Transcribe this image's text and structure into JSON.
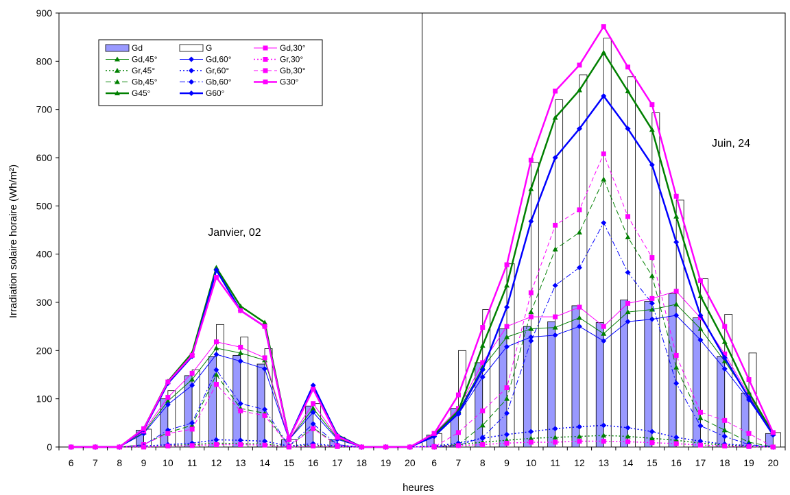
{
  "chart_data": {
    "type": "bar",
    "xlabel": "heures",
    "ylabel": "Irradiation solaire horaire (Wh/m²)",
    "ylim": [
      0,
      900
    ],
    "yticks": [
      0,
      100,
      200,
      300,
      400,
      500,
      600,
      700,
      800,
      900
    ],
    "grid": false,
    "legend_position": "top-left",
    "annotations": [
      "Janvier, 02",
      "Juin, 24"
    ],
    "categories": [
      "6",
      "7",
      "8",
      "9",
      "10",
      "11",
      "12",
      "13",
      "14",
      "15",
      "16",
      "17",
      "18",
      "19",
      "20",
      "6",
      "7",
      "8",
      "9",
      "10",
      "11",
      "12",
      "13",
      "14",
      "15",
      "16",
      "17",
      "18",
      "19",
      "20"
    ],
    "bar_series": [
      {
        "name": "Gd",
        "color": "#9999ff",
        "values": [
          0,
          0,
          0,
          35,
          100,
          148,
          188,
          190,
          172,
          15,
          85,
          15,
          0,
          0,
          0,
          25,
          80,
          175,
          245,
          250,
          260,
          293,
          258,
          305,
          302,
          318,
          268,
          188,
          112,
          28
        ]
      },
      {
        "name": "G",
        "color": "#ffffff",
        "values": [
          0,
          0,
          0,
          37,
          117,
          160,
          254,
          228,
          204,
          15,
          90,
          20,
          0,
          0,
          0,
          28,
          200,
          285,
          380,
          590,
          720,
          772,
          848,
          768,
          693,
          512,
          349,
          275,
          195,
          30
        ]
      }
    ],
    "line_series": [
      {
        "name": "Gd,45°",
        "color": "#008000",
        "dash": "solid",
        "marker": "triangle",
        "width": 1,
        "values": [
          0,
          0,
          0,
          30,
          95,
          140,
          205,
          195,
          180,
          15,
          80,
          18,
          0,
          0,
          0,
          25,
          75,
          165,
          228,
          245,
          248,
          268,
          235,
          280,
          285,
          296,
          245,
          178,
          105,
          28
        ]
      },
      {
        "name": "Gr,45°",
        "color": "#008000",
        "dash": "dot",
        "marker": "triangle",
        "width": 1.5,
        "values": [
          0,
          0,
          0,
          1,
          3,
          5,
          8,
          7,
          6,
          1,
          4,
          1,
          0,
          0,
          0,
          1,
          5,
          10,
          14,
          18,
          20,
          22,
          24,
          22,
          18,
          14,
          8,
          4,
          2,
          0
        ]
      },
      {
        "name": "Gb,45°",
        "color": "#008000",
        "dash": "longdash",
        "marker": "triangle",
        "width": 1,
        "values": [
          0,
          0,
          0,
          5,
          30,
          45,
          150,
          80,
          70,
          2,
          40,
          4,
          0,
          0,
          0,
          0,
          5,
          45,
          100,
          280,
          410,
          445,
          555,
          435,
          355,
          165,
          60,
          35,
          10,
          0
        ]
      },
      {
        "name": "G45°",
        "color": "#008000",
        "dash": "solid",
        "marker": "triangle",
        "width": 2.5,
        "values": [
          0,
          0,
          0,
          38,
          136,
          195,
          372,
          292,
          258,
          18,
          125,
          25,
          0,
          0,
          0,
          25,
          75,
          210,
          335,
          535,
          683,
          740,
          818,
          738,
          658,
          478,
          313,
          218,
          113,
          28
        ]
      },
      {
        "name": "Gd,60°",
        "color": "#0000ff",
        "dash": "solid",
        "marker": "diamond",
        "width": 1,
        "values": [
          0,
          0,
          0,
          28,
          88,
          128,
          192,
          178,
          162,
          15,
          72,
          16,
          0,
          0,
          0,
          22,
          68,
          145,
          208,
          228,
          232,
          250,
          220,
          260,
          265,
          273,
          222,
          162,
          98,
          25
        ]
      },
      {
        "name": "Gr,60°",
        "color": "#0000ff",
        "dash": "dot",
        "marker": "diamond",
        "width": 1.5,
        "values": [
          0,
          0,
          0,
          2,
          5,
          8,
          15,
          14,
          12,
          2,
          7,
          2,
          0,
          0,
          0,
          2,
          8,
          18,
          26,
          32,
          38,
          42,
          45,
          40,
          32,
          20,
          12,
          6,
          3,
          0
        ]
      },
      {
        "name": "Gb,60°",
        "color": "#0000ff",
        "dash": "dashdot",
        "marker": "diamond",
        "width": 1,
        "values": [
          0,
          0,
          0,
          4,
          35,
          50,
          160,
          90,
          78,
          2,
          48,
          5,
          0,
          0,
          0,
          0,
          3,
          20,
          70,
          220,
          335,
          372,
          465,
          362,
          298,
          132,
          44,
          22,
          5,
          0
        ]
      },
      {
        "name": "G60°",
        "color": "#0000ff",
        "dash": "solid",
        "marker": "diamond",
        "width": 2.5,
        "values": [
          0,
          0,
          0,
          36,
          132,
          188,
          367,
          283,
          250,
          18,
          128,
          24,
          0,
          0,
          0,
          22,
          70,
          160,
          290,
          468,
          600,
          660,
          728,
          660,
          585,
          425,
          273,
          185,
          102,
          25
        ]
      },
      {
        "name": "Gd,30°",
        "color": "#ff00ff",
        "dash": "solid",
        "marker": "square",
        "width": 1,
        "values": [
          0,
          0,
          0,
          33,
          103,
          153,
          218,
          207,
          185,
          15,
          90,
          20,
          0,
          0,
          0,
          28,
          80,
          175,
          250,
          270,
          270,
          290,
          250,
          298,
          308,
          323,
          268,
          193,
          108,
          28
        ]
      },
      {
        "name": "Gr,30°",
        "color": "#ff00ff",
        "dash": "dot",
        "marker": "square",
        "width": 1.5,
        "values": [
          0,
          0,
          0,
          0,
          2,
          3,
          5,
          5,
          4,
          0,
          2,
          1,
          0,
          0,
          0,
          1,
          3,
          5,
          8,
          10,
          10,
          12,
          12,
          11,
          9,
          7,
          4,
          2,
          1,
          0
        ]
      },
      {
        "name": "Gb,30°",
        "color": "#ff00ff",
        "dash": "dash",
        "marker": "square",
        "width": 1,
        "values": [
          0,
          0,
          0,
          5,
          28,
          37,
          130,
          75,
          65,
          2,
          38,
          3,
          0,
          0,
          0,
          0,
          30,
          75,
          123,
          320,
          460,
          492,
          608,
          478,
          393,
          190,
          72,
          55,
          28,
          0
        ]
      },
      {
        "name": "G30°",
        "color": "#ff00ff",
        "dash": "solid",
        "marker": "square",
        "width": 2.5,
        "values": [
          0,
          0,
          0,
          38,
          135,
          190,
          352,
          283,
          250,
          18,
          120,
          22,
          0,
          0,
          0,
          28,
          108,
          248,
          378,
          595,
          738,
          792,
          872,
          788,
          710,
          520,
          345,
          250,
          140,
          30
        ]
      }
    ],
    "legend_order": [
      "Gd",
      "G",
      "Gd,30°",
      "Gd,45°",
      "Gd,60°",
      "Gr,30°",
      "Gr,45°",
      "Gr,60°",
      "Gb,30°",
      "Gb,45°",
      "Gb,60°",
      "G30°",
      "G45°",
      "G60°"
    ]
  }
}
